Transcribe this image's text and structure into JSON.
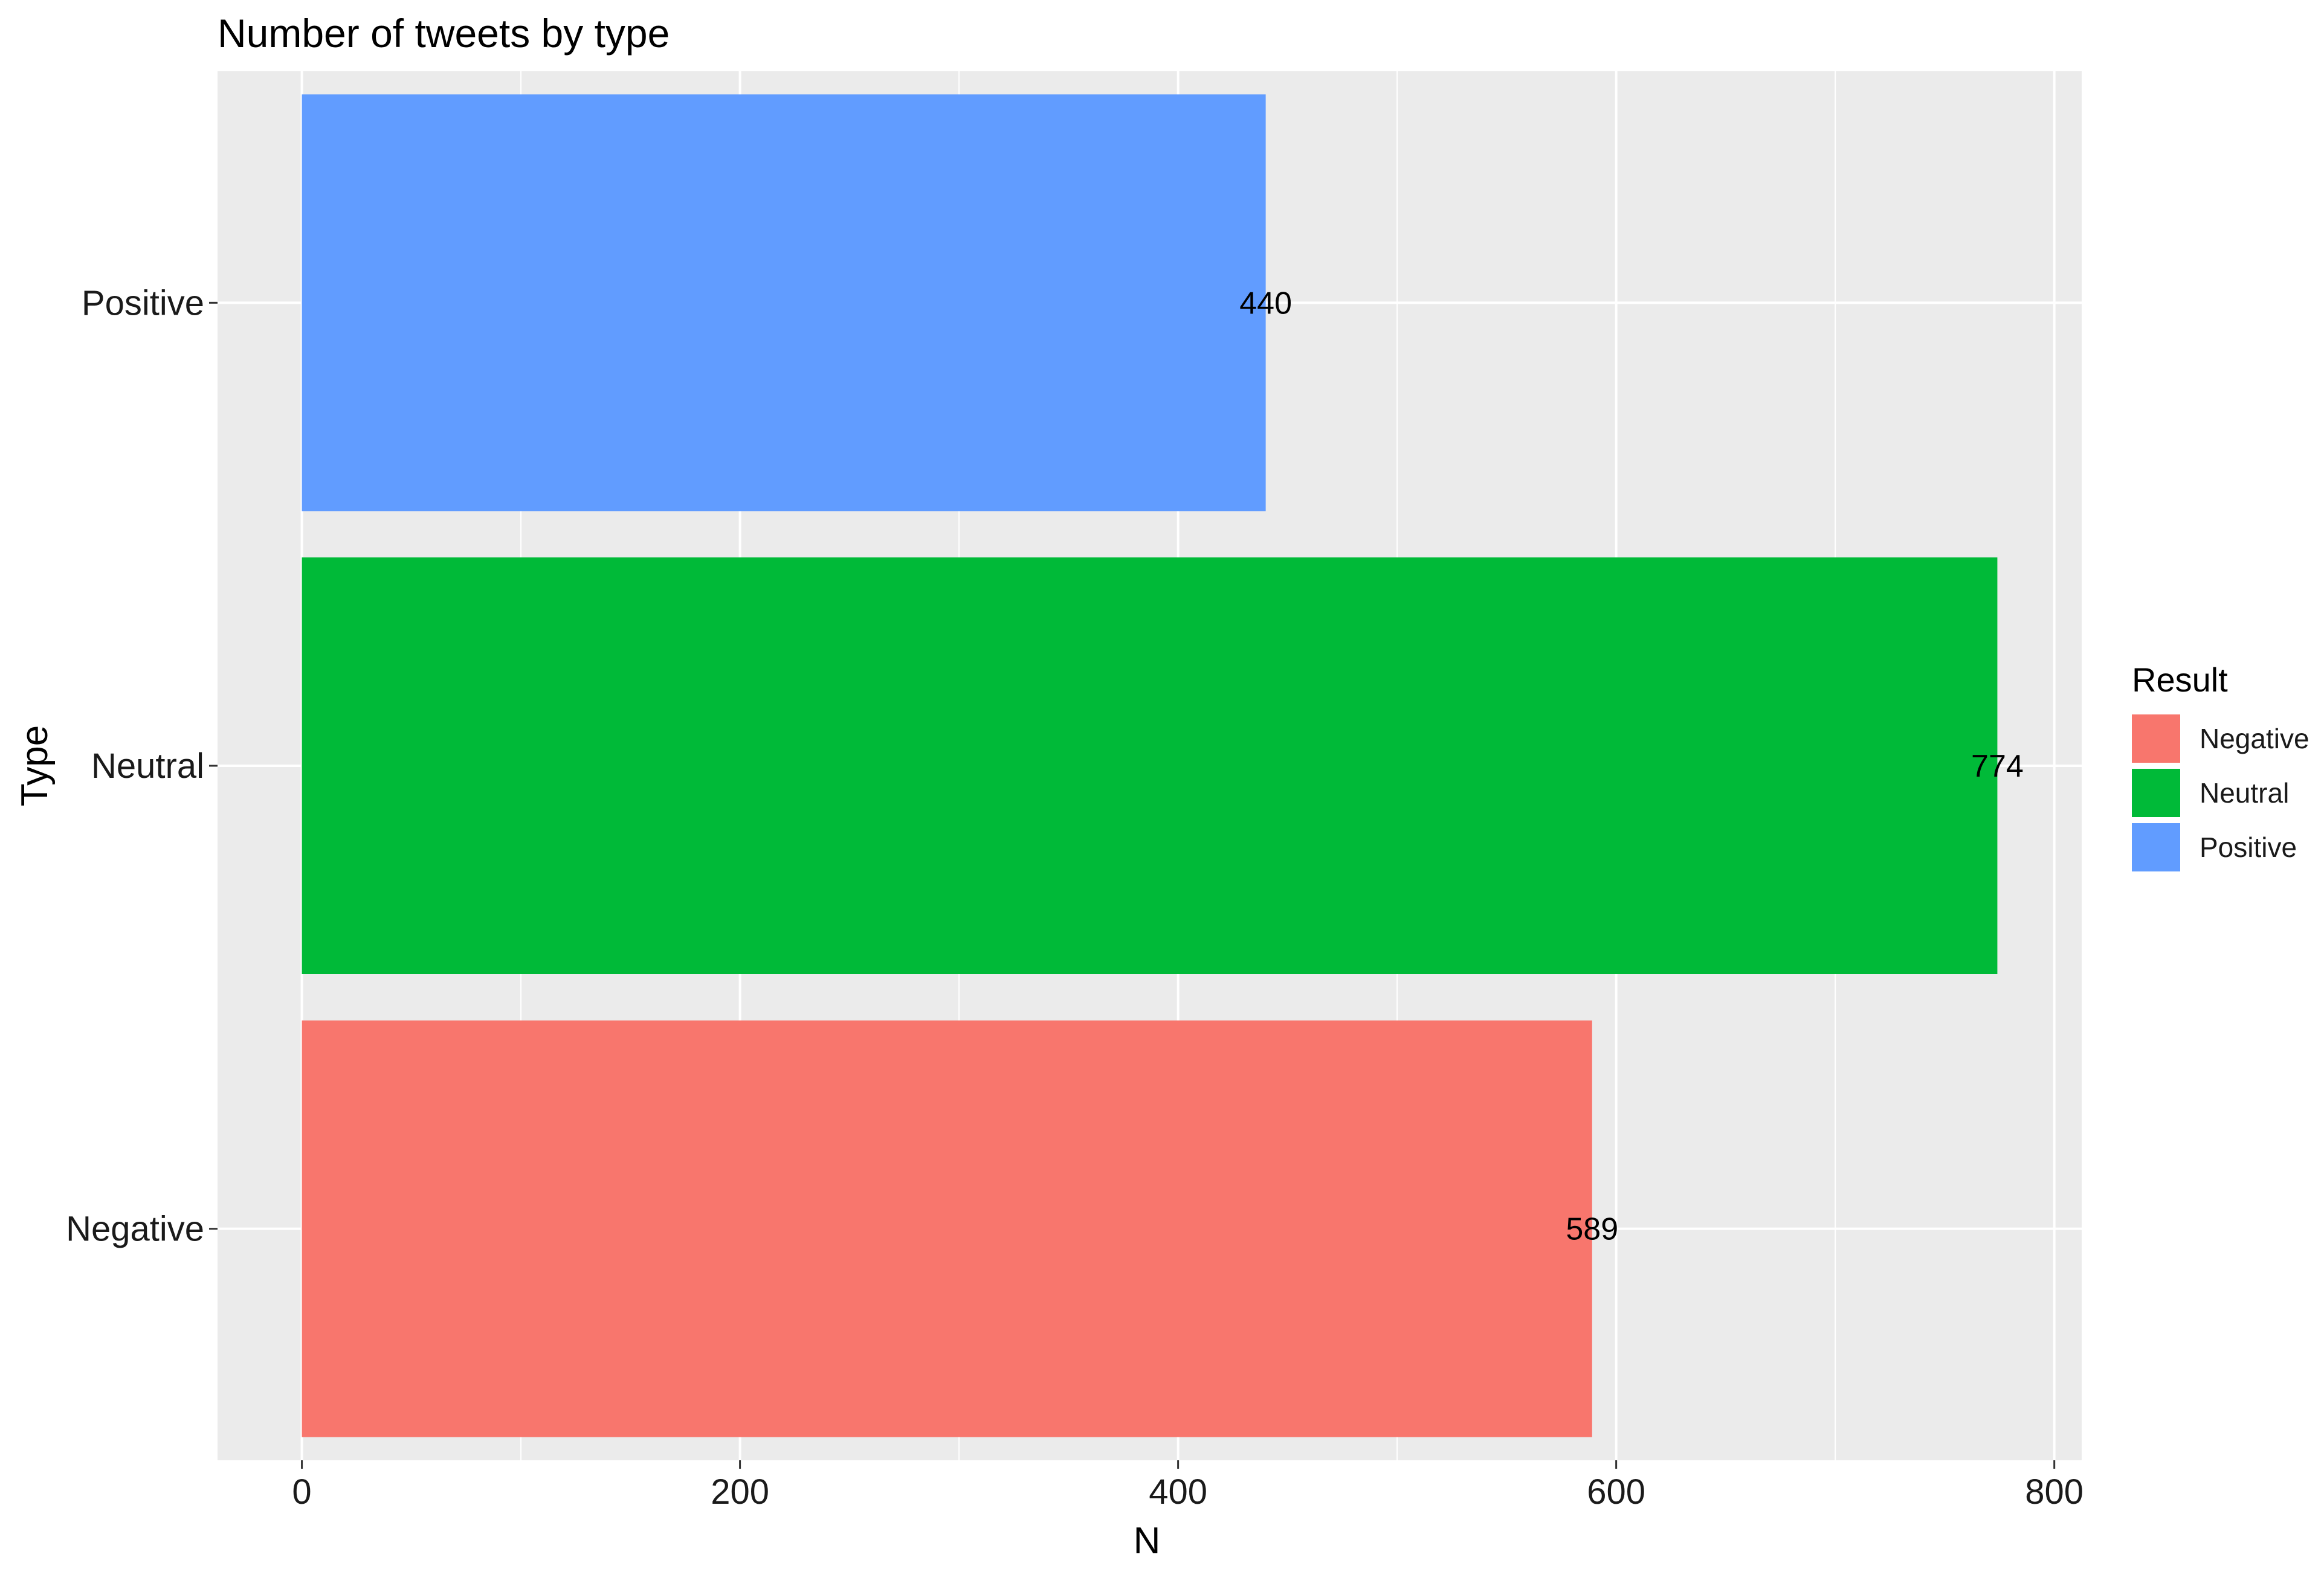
{
  "chart_data": {
    "type": "bar",
    "orientation": "horizontal",
    "title": "Number of tweets by type",
    "xlabel": "N",
    "ylabel": "Type",
    "categories": [
      "Negative",
      "Neutral",
      "Positive"
    ],
    "values": [
      589,
      774,
      440
    ],
    "data_labels": [
      "589",
      "774",
      "440"
    ],
    "colors": [
      "#F8766D",
      "#00BA38",
      "#619CFF"
    ],
    "xlim": [
      -38.5,
      812.5
    ],
    "x_ticks": [
      0,
      200,
      400,
      600,
      800
    ],
    "x_tick_labels": [
      "0",
      "200",
      "400",
      "600",
      "800"
    ],
    "grid": true,
    "panel_background": "#EBEBEB",
    "gridline_color": "#FFFFFF",
    "legend": {
      "title": "Result",
      "position": "right",
      "entries": [
        {
          "label": "Negative",
          "color": "#F8766D"
        },
        {
          "label": "Neutral",
          "color": "#00BA38"
        },
        {
          "label": "Positive",
          "color": "#619CFF"
        }
      ]
    }
  }
}
